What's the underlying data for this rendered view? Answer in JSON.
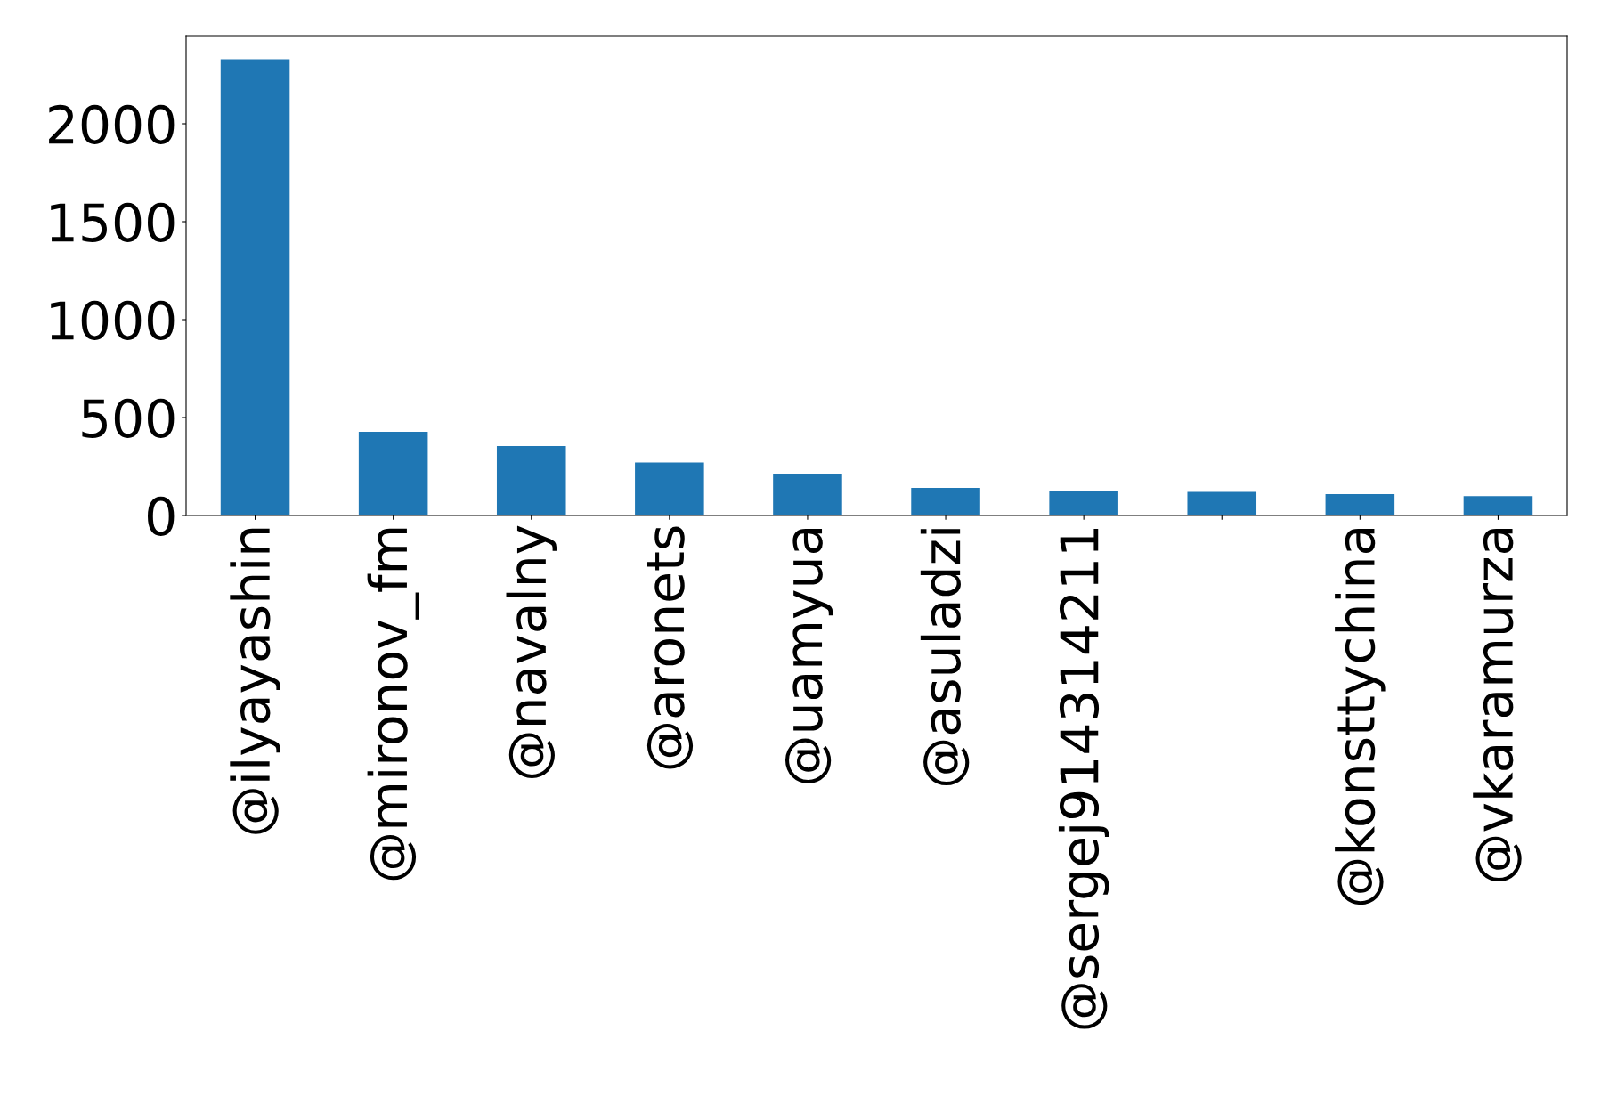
{
  "chart_data": {
    "type": "bar",
    "categories": [
      "@ilyayashin",
      "@mironov_fm",
      "@navalny",
      "@aronets",
      "@uamyua",
      "@asuladzi",
      "@sergej914314211",
      null,
      "@konsttychina",
      "@vkaramurza"
    ],
    "values": [
      2330,
      427,
      354,
      271,
      214,
      141,
      125,
      120,
      109,
      99
    ],
    "color": "#1f77b4",
    "ylim": [
      0,
      2450
    ],
    "yticks": [
      0,
      500,
      1000,
      1500,
      2000
    ],
    "grid": false
  }
}
